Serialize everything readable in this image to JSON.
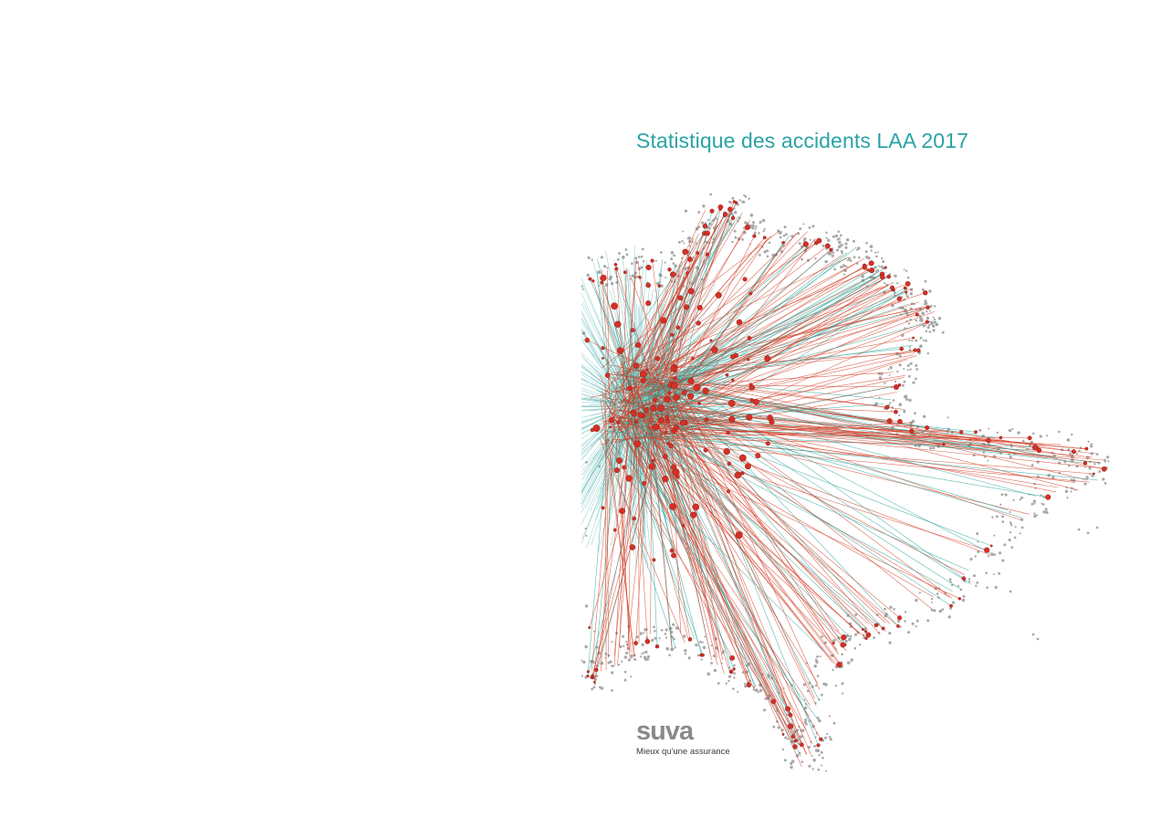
{
  "document": {
    "title": "Statistique des accidents LAA 2017",
    "brand": {
      "wordmark": "suva",
      "tagline": "Mieux qu'une assurance"
    }
  },
  "colors": {
    "title": "#2ba3a5",
    "teal_line": "#2aa39a",
    "red_line": "#d23a22",
    "node": "#d62f25",
    "dot": "#a8a8a8",
    "logo": "#8a8a8d"
  },
  "artwork": {
    "description_name": "accident-network-graphic"
  }
}
